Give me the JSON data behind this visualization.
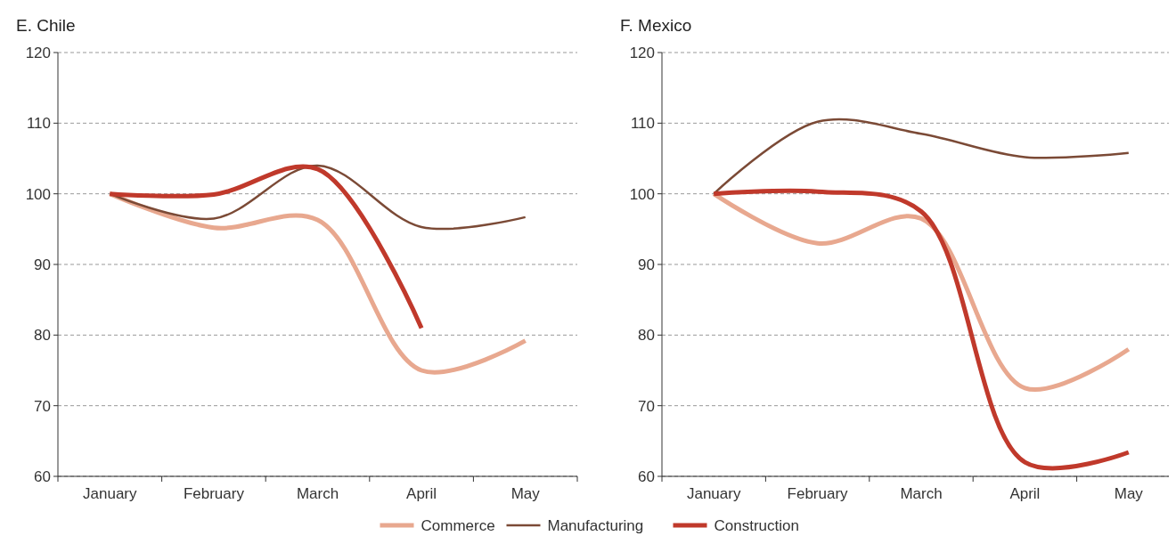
{
  "chart_data": [
    {
      "type": "line",
      "title": "E. Chile",
      "categories": [
        "January",
        "February",
        "March",
        "April",
        "May"
      ],
      "ylim": [
        60,
        120
      ],
      "yticks": [
        60,
        70,
        80,
        90,
        100,
        110,
        120
      ],
      "grid": "y",
      "legend": "bottom",
      "series": [
        {
          "name": "Commerce",
          "color": "#e8a88f",
          "values": [
            100,
            95.2,
            96.3,
            75,
            79.2
          ]
        },
        {
          "name": "Manufacturing",
          "color": "#7b4a36",
          "values": [
            100,
            96.5,
            104,
            95.3,
            96.7
          ]
        },
        {
          "name": "Construction",
          "color": "#c0392b",
          "values": [
            100,
            99.9,
            103.5,
            81,
            null
          ]
        }
      ]
    },
    {
      "type": "line",
      "title": "F. Mexico",
      "categories": [
        "January",
        "February",
        "March",
        "April",
        "May"
      ],
      "ylim": [
        60,
        120
      ],
      "yticks": [
        60,
        70,
        80,
        90,
        100,
        110,
        120
      ],
      "grid": "y",
      "series": [
        {
          "name": "Commerce",
          "color": "#e8a88f",
          "values": [
            100,
            93,
            96.5,
            72.5,
            78
          ]
        },
        {
          "name": "Manufacturing",
          "color": "#7b4a36",
          "values": [
            100,
            110.2,
            108.5,
            105.2,
            105.8
          ]
        },
        {
          "name": "Construction",
          "color": "#c0392b",
          "values": [
            100,
            100.3,
            97.5,
            62,
            63.4
          ]
        }
      ]
    }
  ]
}
